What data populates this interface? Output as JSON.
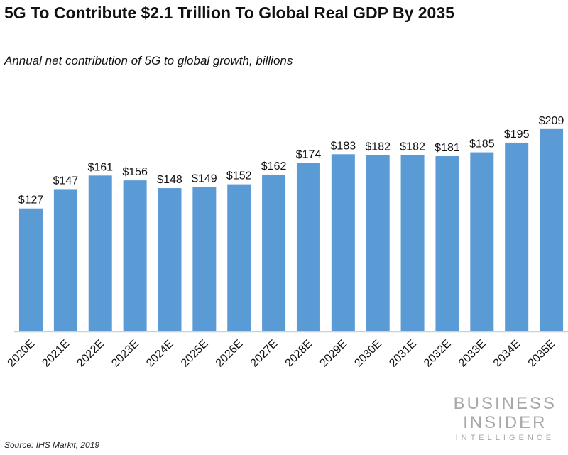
{
  "chart_data": {
    "type": "bar",
    "title": "5G To Contribute $2.1 Trillion To Global Real GDP By 2035",
    "subtitle": "Annual net contribution of 5G to global growth, billions",
    "categories": [
      "2020E",
      "2021E",
      "2022E",
      "2023E",
      "2024E",
      "2025E",
      "2026E",
      "2027E",
      "2028E",
      "2029E",
      "2030E",
      "2031E",
      "2032E",
      "2033E",
      "2034E",
      "2035E"
    ],
    "values": [
      127,
      147,
      161,
      156,
      148,
      149,
      152,
      162,
      174,
      183,
      182,
      182,
      181,
      185,
      195,
      209
    ],
    "value_prefix": "$",
    "xlabel": "",
    "ylabel": "",
    "ylim": [
      0,
      225
    ],
    "grid": false,
    "bar_color": "#5b9bd5"
  },
  "source": "Source: IHS Markit, 2019",
  "logo": {
    "line1": "BUSINESS",
    "line2": "INSIDER",
    "line3": "INTELLIGENCE"
  }
}
